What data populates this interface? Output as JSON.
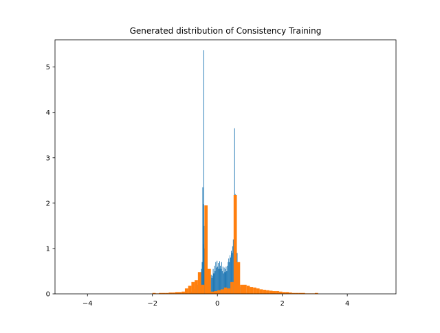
{
  "chart_data": {
    "type": "bar",
    "title": "Generated distribution of Consistency Training",
    "xlabel": "",
    "ylabel": "",
    "xlim": [
      -5.0,
      5.5
    ],
    "ylim": [
      0,
      5.6
    ],
    "xticks": [
      -4,
      -2,
      0,
      2,
      4
    ],
    "xtick_labels": [
      "−4",
      "−2",
      "0",
      "2",
      "4"
    ],
    "yticks": [
      0,
      1,
      2,
      3,
      4,
      5
    ],
    "ytick_labels": [
      "0",
      "1",
      "2",
      "3",
      "4",
      "5"
    ],
    "grid": false,
    "legend": "none",
    "series": [
      {
        "color": "#1f77b4",
        "bin_width": 0.02,
        "bins": [
          [
            -0.95,
            0.02
          ],
          [
            -0.88,
            0.03
          ],
          [
            -0.82,
            0.05
          ],
          [
            -0.76,
            0.07
          ],
          [
            -0.7,
            0.1
          ],
          [
            -0.66,
            0.14
          ],
          [
            -0.62,
            0.2
          ],
          [
            -0.58,
            0.28
          ],
          [
            -0.54,
            0.35
          ],
          [
            -0.52,
            0.45
          ],
          [
            -0.5,
            0.55
          ],
          [
            -0.48,
            0.7
          ],
          [
            -0.46,
            2.35
          ],
          [
            -0.45,
            1.1
          ],
          [
            -0.44,
            1.98
          ],
          [
            -0.43,
            5.37
          ],
          [
            -0.42,
            1.5
          ],
          [
            -0.41,
            1.0
          ],
          [
            -0.4,
            0.6
          ],
          [
            -0.38,
            0.35
          ],
          [
            -0.36,
            0.26
          ],
          [
            -0.34,
            0.24
          ],
          [
            -0.32,
            0.22
          ],
          [
            -0.3,
            0.2
          ],
          [
            -0.28,
            0.28
          ],
          [
            -0.26,
            0.22
          ],
          [
            -0.24,
            0.36
          ],
          [
            -0.22,
            0.3
          ],
          [
            -0.2,
            0.42
          ],
          [
            -0.18,
            0.35
          ],
          [
            -0.16,
            0.4
          ],
          [
            -0.14,
            0.55
          ],
          [
            -0.12,
            0.45
          ],
          [
            -0.1,
            0.62
          ],
          [
            -0.08,
            0.5
          ],
          [
            -0.06,
            0.7
          ],
          [
            -0.04,
            0.58
          ],
          [
            -0.02,
            0.73
          ],
          [
            0.0,
            0.6
          ],
          [
            0.02,
            0.68
          ],
          [
            0.04,
            0.55
          ],
          [
            0.06,
            0.72
          ],
          [
            0.08,
            0.62
          ],
          [
            0.1,
            0.55
          ],
          [
            0.12,
            0.7
          ],
          [
            0.14,
            0.5
          ],
          [
            0.16,
            0.6
          ],
          [
            0.18,
            0.45
          ],
          [
            0.2,
            0.58
          ],
          [
            0.22,
            0.48
          ],
          [
            0.24,
            0.55
          ],
          [
            0.26,
            0.6
          ],
          [
            0.28,
            0.5
          ],
          [
            0.3,
            0.62
          ],
          [
            0.32,
            0.7
          ],
          [
            0.34,
            0.78
          ],
          [
            0.36,
            0.7
          ],
          [
            0.38,
            0.85
          ],
          [
            0.4,
            0.8
          ],
          [
            0.42,
            0.95
          ],
          [
            0.44,
            0.9
          ],
          [
            0.46,
            1.05
          ],
          [
            0.48,
            1.2
          ],
          [
            0.5,
            1.05
          ],
          [
            0.52,
            3.65
          ],
          [
            0.53,
            1.5
          ],
          [
            0.54,
            2.2
          ],
          [
            0.56,
            1.15
          ],
          [
            0.58,
            1.0
          ],
          [
            0.6,
            0.9
          ],
          [
            0.62,
            0.35
          ],
          [
            0.64,
            0.22
          ],
          [
            0.68,
            0.15
          ],
          [
            0.74,
            0.1
          ],
          [
            0.8,
            0.07
          ],
          [
            0.88,
            0.05
          ],
          [
            0.96,
            0.03
          ],
          [
            1.05,
            0.02
          ]
        ]
      },
      {
        "color": "#ff7f0e",
        "bin_width": 0.1,
        "bins": [
          [
            -2.0,
            0.02
          ],
          [
            -1.9,
            0.01
          ],
          [
            -1.8,
            0.02
          ],
          [
            -1.7,
            0.02
          ],
          [
            -1.6,
            0.02
          ],
          [
            -1.5,
            0.03
          ],
          [
            -1.4,
            0.03
          ],
          [
            -1.3,
            0.04
          ],
          [
            -1.2,
            0.04
          ],
          [
            -1.1,
            0.05
          ],
          [
            -1.0,
            0.12
          ],
          [
            -0.9,
            0.18
          ],
          [
            -0.8,
            0.26
          ],
          [
            -0.7,
            0.3
          ],
          [
            -0.6,
            0.48
          ],
          [
            -0.5,
            0.2
          ],
          [
            -0.4,
            1.95
          ],
          [
            -0.3,
            0.55
          ],
          [
            -0.2,
            0.05
          ],
          [
            -0.1,
            0.06
          ],
          [
            0.0,
            0.08
          ],
          [
            0.1,
            0.1
          ],
          [
            0.2,
            0.14
          ],
          [
            0.3,
            0.12
          ],
          [
            0.4,
            0.26
          ],
          [
            0.5,
            2.18
          ],
          [
            0.6,
            0.7
          ],
          [
            0.7,
            0.2
          ],
          [
            0.8,
            0.2
          ],
          [
            0.9,
            0.18
          ],
          [
            1.0,
            0.15
          ],
          [
            1.1,
            0.14
          ],
          [
            1.2,
            0.12
          ],
          [
            1.3,
            0.1
          ],
          [
            1.4,
            0.09
          ],
          [
            1.5,
            0.08
          ],
          [
            1.6,
            0.07
          ],
          [
            1.7,
            0.06
          ],
          [
            1.8,
            0.06
          ],
          [
            1.9,
            0.05
          ],
          [
            2.0,
            0.04
          ],
          [
            2.1,
            0.04
          ],
          [
            2.2,
            0.03
          ],
          [
            2.3,
            0.02
          ],
          [
            2.4,
            0.02
          ],
          [
            2.5,
            0.02
          ],
          [
            2.6,
            0.02
          ],
          [
            2.7,
            0.01
          ],
          [
            2.8,
            0.01
          ],
          [
            2.9,
            0.01
          ],
          [
            3.0,
            0.02
          ]
        ]
      }
    ]
  }
}
